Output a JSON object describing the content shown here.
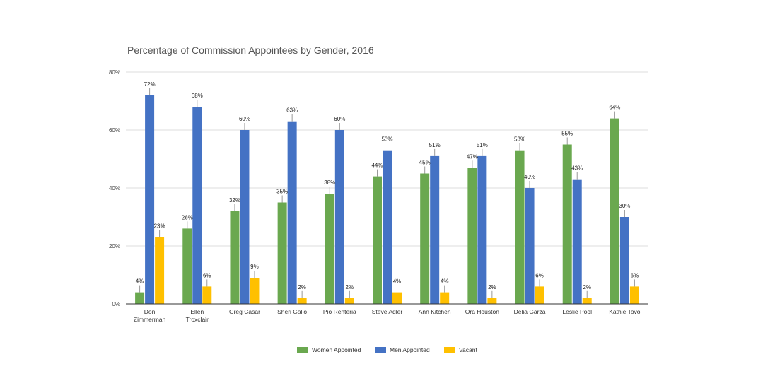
{
  "chart_data": {
    "type": "bar",
    "title": "Percentage of Commission Appointees by Gender, 2016",
    "xlabel": "",
    "ylabel": "",
    "ylim": [
      0,
      80
    ],
    "yticks": [
      0,
      20,
      40,
      60,
      80
    ],
    "ytick_labels": [
      "0%",
      "20%",
      "40%",
      "60%",
      "80%"
    ],
    "grid": true,
    "legend_position": "bottom",
    "categories": [
      [
        "Don",
        "Zimmerman"
      ],
      [
        "Ellen",
        "Troxclair"
      ],
      [
        "Greg Casar"
      ],
      [
        "Sheri Gallo"
      ],
      [
        "Pio Renteria"
      ],
      [
        "Steve Adler"
      ],
      [
        "Ann Kitchen"
      ],
      [
        "Ora Houston"
      ],
      [
        "Delia Garza"
      ],
      [
        "Leslie Pool"
      ],
      [
        "Kathie Tovo"
      ]
    ],
    "series": [
      {
        "name": "Women Appointed",
        "color": "#6aa84f",
        "values": [
          4,
          26,
          32,
          35,
          38,
          44,
          45,
          47,
          53,
          55,
          64
        ],
        "labels": [
          "4%",
          "26%",
          "32%",
          "35%",
          "38%",
          "44%",
          "45%",
          "47%",
          "53%",
          "55%",
          "64%"
        ]
      },
      {
        "name": "Men Appointed",
        "color": "#4472c4",
        "values": [
          72,
          68,
          60,
          63,
          60,
          53,
          51,
          51,
          40,
          43,
          30
        ],
        "labels": [
          "72%",
          "68%",
          "60%",
          "63%",
          "60%",
          "53%",
          "51%",
          "51%",
          "40%",
          "43%",
          "30%"
        ]
      },
      {
        "name": "Vacant",
        "color": "#ffc000",
        "values": [
          23,
          6,
          9,
          2,
          2,
          4,
          4,
          2,
          6,
          2,
          6
        ],
        "labels": [
          "23%",
          "6%",
          "9%",
          "2%",
          "2%",
          "4%",
          "4%",
          "2%",
          "6%",
          "2%",
          "6%"
        ]
      }
    ]
  }
}
